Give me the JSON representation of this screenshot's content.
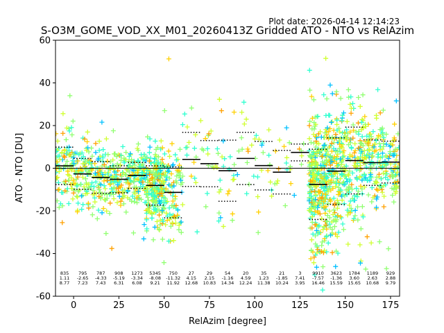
{
  "chart_data": {
    "type": "scatter",
    "title": "S-O3M_GOME_VOD_XX_M01_20260413Z Gridded ATO - NTO vs RelAzim",
    "plot_date": "Plot date: 2026-04-14 12:14:23",
    "xlabel": "RelAzim [degree]",
    "ylabel": "ATO - NTO [DU]",
    "xlim": [
      -10,
      180
    ],
    "ylim": [
      -60,
      60
    ],
    "xticks": [
      0,
      25,
      50,
      75,
      100,
      125,
      150,
      175
    ],
    "yticks": [
      -60,
      -40,
      -20,
      0,
      20,
      40,
      60
    ],
    "zero_line": 0,
    "bins": [
      {
        "x0": -10,
        "x1": 0,
        "count": "835",
        "mean": "1.11",
        "std": "8.77"
      },
      {
        "x0": 0,
        "x1": 10,
        "count": "795",
        "mean": "-2.65",
        "std": "7.23"
      },
      {
        "x0": 10,
        "x1": 20,
        "count": "787",
        "mean": "-4.33",
        "std": "7.43"
      },
      {
        "x0": 20,
        "x1": 30,
        "count": "908",
        "mean": "-5.19",
        "std": "6.31"
      },
      {
        "x0": 30,
        "x1": 40,
        "count": "1273",
        "mean": "-3.34",
        "std": "6.08"
      },
      {
        "x0": 40,
        "x1": 50,
        "count": "5345",
        "mean": "-8.08",
        "std": "9.21"
      },
      {
        "x0": 50,
        "x1": 60,
        "count": "750",
        "mean": "-11.32",
        "std": "11.92"
      },
      {
        "x0": 60,
        "x1": 70,
        "count": "27",
        "mean": "4.15",
        "std": "12.68"
      },
      {
        "x0": 70,
        "x1": 80,
        "count": "29",
        "mean": "2.15",
        "std": "10.83"
      },
      {
        "x0": 80,
        "x1": 90,
        "count": "54",
        "mean": "-1.16",
        "std": "14.34"
      },
      {
        "x0": 90,
        "x1": 100,
        "count": "20",
        "mean": "4.59",
        "std": "12.24"
      },
      {
        "x0": 100,
        "x1": 110,
        "count": "35",
        "mean": "1.23",
        "std": "11.38"
      },
      {
        "x0": 110,
        "x1": 120,
        "count": "21",
        "mean": "-1.85",
        "std": "10.24"
      },
      {
        "x0": 120,
        "x1": 130,
        "count": "3",
        "mean": "7.41",
        "std": "3.95"
      },
      {
        "x0": 130,
        "x1": 140,
        "count": "9910",
        "mean": "-7.57",
        "std": "16.46"
      },
      {
        "x0": 140,
        "x1": 150,
        "count": "3623",
        "mean": "-1.36",
        "std": "15.59"
      },
      {
        "x0": 150,
        "x1": 160,
        "count": "1784",
        "mean": "3.60",
        "std": "15.65"
      },
      {
        "x0": 160,
        "x1": 170,
        "count": "1189",
        "mean": "2.63",
        "std": "10.68"
      },
      {
        "x0": 170,
        "x1": 180,
        "count": "929",
        "mean": "2.88",
        "std": "9.79"
      }
    ],
    "colors": {
      "mean_line": "#000000",
      "std_line": "#000000",
      "scatter": [
        "#0000cc",
        "#0080ff",
        "#00c0ff",
        "#30ffd0",
        "#90ff70",
        "#d0ff30",
        "#ffd000",
        "#ffa000"
      ]
    }
  }
}
